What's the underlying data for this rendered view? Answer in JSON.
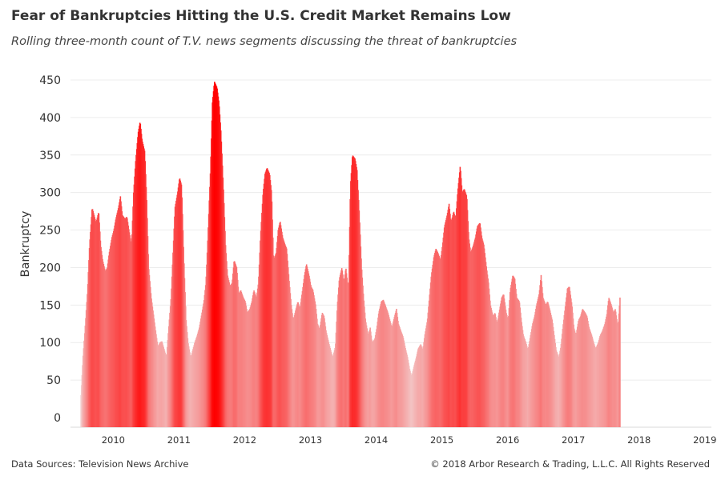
{
  "header": {
    "title": "Fear of Bankruptcies Hitting the U.S. Credit Market Remains Low",
    "subtitle": "Rolling three-month count of T.V. news segments discussing the threat of bankruptcies"
  },
  "footer": {
    "source": "Data Sources: Television News Archive",
    "copyright": "© 2018 Arbor Research & Trading, L.L.C. All Rights Reserved"
  },
  "chart_data": {
    "type": "bar",
    "ylabel": "Bankruptcy",
    "xlabel": "",
    "ylim": [
      0,
      450
    ],
    "yticks": [
      0,
      50,
      100,
      150,
      200,
      250,
      300,
      350,
      400,
      450
    ],
    "xlim": [
      2009.35,
      2019.1
    ],
    "xticks": [
      "2010",
      "2011",
      "2012",
      "2013",
      "2014",
      "2015",
      "2016",
      "2017",
      "2018",
      "2019"
    ],
    "grid": true,
    "color_scale": {
      "low": "#f2d3d3",
      "high": "#ff0000",
      "min": 40,
      "max": 450
    },
    "points": [
      [
        2009.5,
        30
      ],
      [
        2009.53,
        80
      ],
      [
        2009.57,
        130
      ],
      [
        2009.6,
        170
      ],
      [
        2009.63,
        230
      ],
      [
        2009.67,
        280
      ],
      [
        2009.7,
        270
      ],
      [
        2009.73,
        260
      ],
      [
        2009.77,
        275
      ],
      [
        2009.8,
        230
      ],
      [
        2009.83,
        210
      ],
      [
        2009.87,
        195
      ],
      [
        2009.9,
        200
      ],
      [
        2009.93,
        220
      ],
      [
        2009.97,
        240
      ],
      [
        2010.0,
        250
      ],
      [
        2010.03,
        265
      ],
      [
        2010.07,
        280
      ],
      [
        2010.1,
        295
      ],
      [
        2010.13,
        270
      ],
      [
        2010.17,
        265
      ],
      [
        2010.2,
        268
      ],
      [
        2010.23,
        250
      ],
      [
        2010.27,
        230
      ],
      [
        2010.3,
        300
      ],
      [
        2010.33,
        340
      ],
      [
        2010.37,
        380
      ],
      [
        2010.4,
        395
      ],
      [
        2010.43,
        370
      ],
      [
        2010.47,
        355
      ],
      [
        2010.5,
        290
      ],
      [
        2010.53,
        200
      ],
      [
        2010.57,
        160
      ],
      [
        2010.6,
        140
      ],
      [
        2010.63,
        120
      ],
      [
        2010.67,
        95
      ],
      [
        2010.7,
        100
      ],
      [
        2010.73,
        102
      ],
      [
        2010.77,
        90
      ],
      [
        2010.8,
        80
      ],
      [
        2010.83,
        115
      ],
      [
        2010.87,
        160
      ],
      [
        2010.9,
        220
      ],
      [
        2010.93,
        280
      ],
      [
        2010.97,
        300
      ],
      [
        2011.0,
        320
      ],
      [
        2011.03,
        310
      ],
      [
        2011.07,
        200
      ],
      [
        2011.1,
        130
      ],
      [
        2011.13,
        100
      ],
      [
        2011.17,
        80
      ],
      [
        2011.2,
        90
      ],
      [
        2011.23,
        100
      ],
      [
        2011.27,
        110
      ],
      [
        2011.3,
        120
      ],
      [
        2011.33,
        135
      ],
      [
        2011.37,
        155
      ],
      [
        2011.4,
        180
      ],
      [
        2011.43,
        240
      ],
      [
        2011.47,
        330
      ],
      [
        2011.5,
        420
      ],
      [
        2011.53,
        448
      ],
      [
        2011.57,
        440
      ],
      [
        2011.6,
        420
      ],
      [
        2011.63,
        380
      ],
      [
        2011.67,
        300
      ],
      [
        2011.7,
        230
      ],
      [
        2011.73,
        190
      ],
      [
        2011.77,
        175
      ],
      [
        2011.8,
        180
      ],
      [
        2011.83,
        210
      ],
      [
        2011.87,
        200
      ],
      [
        2011.9,
        165
      ],
      [
        2011.93,
        170
      ],
      [
        2011.97,
        160
      ],
      [
        2012.0,
        155
      ],
      [
        2012.03,
        140
      ],
      [
        2012.07,
        145
      ],
      [
        2012.1,
        155
      ],
      [
        2012.13,
        170
      ],
      [
        2012.17,
        160
      ],
      [
        2012.2,
        180
      ],
      [
        2012.23,
        240
      ],
      [
        2012.27,
        300
      ],
      [
        2012.3,
        325
      ],
      [
        2012.33,
        333
      ],
      [
        2012.37,
        325
      ],
      [
        2012.4,
        300
      ],
      [
        2012.43,
        210
      ],
      [
        2012.47,
        220
      ],
      [
        2012.5,
        250
      ],
      [
        2012.53,
        262
      ],
      [
        2012.57,
        240
      ],
      [
        2012.6,
        232
      ],
      [
        2012.63,
        225
      ],
      [
        2012.67,
        180
      ],
      [
        2012.7,
        150
      ],
      [
        2012.73,
        130
      ],
      [
        2012.77,
        145
      ],
      [
        2012.8,
        155
      ],
      [
        2012.83,
        145
      ],
      [
        2012.87,
        170
      ],
      [
        2012.9,
        190
      ],
      [
        2012.93,
        205
      ],
      [
        2012.97,
        190
      ],
      [
        2013.0,
        175
      ],
      [
        2013.03,
        170
      ],
      [
        2013.07,
        150
      ],
      [
        2013.1,
        125
      ],
      [
        2013.13,
        118
      ],
      [
        2013.17,
        140
      ],
      [
        2013.2,
        135
      ],
      [
        2013.23,
        115
      ],
      [
        2013.27,
        100
      ],
      [
        2013.3,
        90
      ],
      [
        2013.33,
        80
      ],
      [
        2013.37,
        95
      ],
      [
        2013.4,
        150
      ],
      [
        2013.43,
        185
      ],
      [
        2013.47,
        200
      ],
      [
        2013.5,
        180
      ],
      [
        2013.53,
        200
      ],
      [
        2013.57,
        170
      ],
      [
        2013.6,
        310
      ],
      [
        2013.63,
        350
      ],
      [
        2013.67,
        345
      ],
      [
        2013.7,
        330
      ],
      [
        2013.73,
        280
      ],
      [
        2013.77,
        200
      ],
      [
        2013.8,
        160
      ],
      [
        2013.83,
        130
      ],
      [
        2013.87,
        110
      ],
      [
        2013.9,
        120
      ],
      [
        2013.93,
        100
      ],
      [
        2013.97,
        105
      ],
      [
        2014.0,
        120
      ],
      [
        2014.03,
        140
      ],
      [
        2014.07,
        155
      ],
      [
        2014.1,
        157
      ],
      [
        2014.13,
        150
      ],
      [
        2014.17,
        140
      ],
      [
        2014.2,
        130
      ],
      [
        2014.23,
        120
      ],
      [
        2014.27,
        135
      ],
      [
        2014.3,
        145
      ],
      [
        2014.33,
        125
      ],
      [
        2014.37,
        115
      ],
      [
        2014.4,
        108
      ],
      [
        2014.43,
        95
      ],
      [
        2014.47,
        80
      ],
      [
        2014.5,
        65
      ],
      [
        2014.53,
        55
      ],
      [
        2014.57,
        70
      ],
      [
        2014.6,
        80
      ],
      [
        2014.63,
        92
      ],
      [
        2014.67,
        98
      ],
      [
        2014.7,
        90
      ],
      [
        2014.73,
        110
      ],
      [
        2014.77,
        130
      ],
      [
        2014.8,
        160
      ],
      [
        2014.83,
        190
      ],
      [
        2014.87,
        215
      ],
      [
        2014.9,
        225
      ],
      [
        2014.93,
        220
      ],
      [
        2014.97,
        210
      ],
      [
        2015.0,
        230
      ],
      [
        2015.03,
        255
      ],
      [
        2015.07,
        270
      ],
      [
        2015.1,
        285
      ],
      [
        2015.13,
        260
      ],
      [
        2015.17,
        275
      ],
      [
        2015.2,
        265
      ],
      [
        2015.23,
        300
      ],
      [
        2015.27,
        336
      ],
      [
        2015.3,
        300
      ],
      [
        2015.33,
        305
      ],
      [
        2015.37,
        295
      ],
      [
        2015.4,
        240
      ],
      [
        2015.43,
        220
      ],
      [
        2015.47,
        230
      ],
      [
        2015.5,
        240
      ],
      [
        2015.53,
        255
      ],
      [
        2015.57,
        260
      ],
      [
        2015.6,
        240
      ],
      [
        2015.63,
        230
      ],
      [
        2015.67,
        200
      ],
      [
        2015.7,
        180
      ],
      [
        2015.73,
        150
      ],
      [
        2015.77,
        135
      ],
      [
        2015.8,
        140
      ],
      [
        2015.83,
        125
      ],
      [
        2015.87,
        145
      ],
      [
        2015.9,
        160
      ],
      [
        2015.93,
        165
      ],
      [
        2015.97,
        140
      ],
      [
        2016.0,
        130
      ],
      [
        2016.03,
        170
      ],
      [
        2016.07,
        190
      ],
      [
        2016.1,
        185
      ],
      [
        2016.13,
        160
      ],
      [
        2016.17,
        155
      ],
      [
        2016.2,
        130
      ],
      [
        2016.23,
        110
      ],
      [
        2016.27,
        100
      ],
      [
        2016.3,
        90
      ],
      [
        2016.33,
        105
      ],
      [
        2016.37,
        125
      ],
      [
        2016.4,
        135
      ],
      [
        2016.43,
        150
      ],
      [
        2016.47,
        165
      ],
      [
        2016.5,
        190
      ],
      [
        2016.53,
        160
      ],
      [
        2016.57,
        150
      ],
      [
        2016.6,
        155
      ],
      [
        2016.63,
        145
      ],
      [
        2016.67,
        130
      ],
      [
        2016.7,
        110
      ],
      [
        2016.73,
        90
      ],
      [
        2016.77,
        80
      ],
      [
        2016.8,
        95
      ],
      [
        2016.83,
        120
      ],
      [
        2016.87,
        150
      ],
      [
        2016.9,
        172
      ],
      [
        2016.93,
        175
      ],
      [
        2016.97,
        150
      ],
      [
        2017.0,
        120
      ],
      [
        2017.03,
        110
      ],
      [
        2017.07,
        130
      ],
      [
        2017.1,
        135
      ],
      [
        2017.13,
        145
      ],
      [
        2017.17,
        140
      ],
      [
        2017.2,
        135
      ],
      [
        2017.23,
        120
      ],
      [
        2017.27,
        110
      ],
      [
        2017.3,
        100
      ],
      [
        2017.33,
        92
      ],
      [
        2017.37,
        100
      ],
      [
        2017.4,
        110
      ],
      [
        2017.43,
        115
      ],
      [
        2017.47,
        125
      ],
      [
        2017.5,
        138
      ],
      [
        2017.53,
        160
      ],
      [
        2017.57,
        150
      ],
      [
        2017.6,
        140
      ],
      [
        2017.63,
        145
      ],
      [
        2017.67,
        120
      ],
      [
        2017.7,
        160
      ]
    ]
  }
}
